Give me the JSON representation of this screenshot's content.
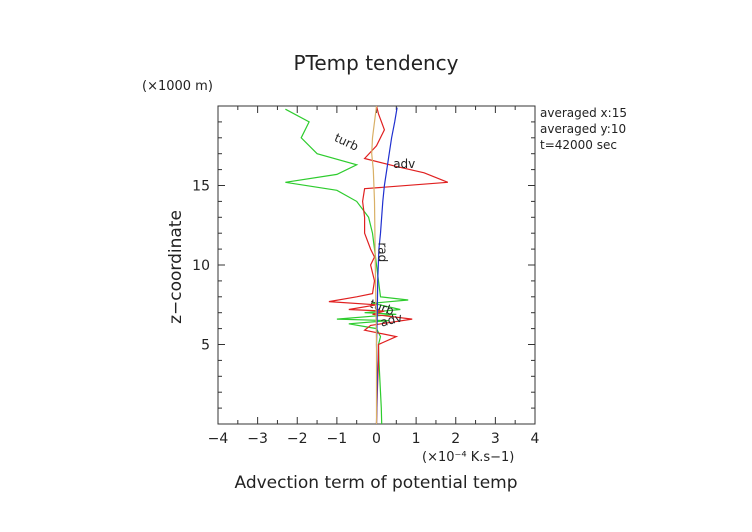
{
  "chart_data": {
    "type": "line",
    "title": "PTemp tendency",
    "xlabel": "Advection term of potential temp",
    "ylabel": "z−coordinate",
    "x_unit": "(×10⁻⁴ K.s−1)",
    "y_unit": "(×1000 m)",
    "xlim": [
      -4,
      4
    ],
    "ylim": [
      0,
      20
    ],
    "x_ticks": [
      -4,
      -3,
      -2,
      -1,
      0,
      1,
      2,
      3,
      4
    ],
    "y_ticks": [
      5,
      10,
      15
    ],
    "grid": false,
    "legend": "none",
    "annotations": [
      "averaged  x:15",
      "averaged  y:10",
      "t=42000 sec"
    ],
    "series": [
      {
        "name": "turb",
        "color": "#2ecc2e",
        "points": [
          [
            0.13,
            0.0
          ],
          [
            0.12,
            1.0
          ],
          [
            0.1,
            2.0
          ],
          [
            0.08,
            3.0
          ],
          [
            0.06,
            4.0
          ],
          [
            0.05,
            5.0
          ],
          [
            0.1,
            5.5
          ],
          [
            0.0,
            6.0
          ],
          [
            -0.7,
            6.3
          ],
          [
            0.3,
            6.5
          ],
          [
            -1.0,
            6.6
          ],
          [
            0.5,
            6.9
          ],
          [
            -0.3,
            7.0
          ],
          [
            0.6,
            7.2
          ],
          [
            -0.1,
            7.6
          ],
          [
            0.8,
            7.8
          ],
          [
            0.1,
            8.0
          ],
          [
            0.05,
            9.0
          ],
          [
            0.0,
            10.0
          ],
          [
            -0.05,
            11.0
          ],
          [
            -0.1,
            12.0
          ],
          [
            -0.2,
            13.0
          ],
          [
            -0.5,
            14.0
          ],
          [
            -1.0,
            14.7
          ],
          [
            -2.3,
            15.2
          ],
          [
            -1.0,
            15.7
          ],
          [
            -0.5,
            16.3
          ],
          [
            -1.5,
            17.0
          ],
          [
            -1.9,
            18.0
          ],
          [
            -1.7,
            19.0
          ],
          [
            -2.3,
            19.8
          ]
        ],
        "labels": [
          {
            "text": "turb",
            "x": -0.8,
            "y": 17.5
          },
          {
            "text": "turb",
            "x": 0.1,
            "y": 7.1
          }
        ]
      },
      {
        "name": "adv",
        "color": "#e02020",
        "points": [
          [
            0.0,
            0.0
          ],
          [
            0.02,
            2.0
          ],
          [
            0.05,
            4.0
          ],
          [
            0.05,
            5.0
          ],
          [
            0.5,
            5.5
          ],
          [
            -0.3,
            5.9
          ],
          [
            -0.15,
            6.2
          ],
          [
            0.9,
            6.6
          ],
          [
            -0.1,
            6.9
          ],
          [
            0.2,
            7.1
          ],
          [
            -0.7,
            7.2
          ],
          [
            0.0,
            7.5
          ],
          [
            -1.2,
            7.7
          ],
          [
            -0.5,
            8.0
          ],
          [
            -0.1,
            8.2
          ],
          [
            -0.05,
            9.0
          ],
          [
            -0.15,
            10.0
          ],
          [
            -0.05,
            10.5
          ],
          [
            -0.15,
            11.0
          ],
          [
            -0.3,
            12.0
          ],
          [
            -0.3,
            13.0
          ],
          [
            -0.35,
            14.0
          ],
          [
            -0.3,
            14.8
          ],
          [
            1.8,
            15.2
          ],
          [
            1.2,
            15.8
          ],
          [
            0.5,
            16.2
          ],
          [
            -0.3,
            16.7
          ],
          [
            0.0,
            17.5
          ],
          [
            0.2,
            18.5
          ],
          [
            0.05,
            19.5
          ],
          [
            0.0,
            20.0
          ]
        ],
        "labels": [
          {
            "text": "adv",
            "x": 0.7,
            "y": 16.1
          },
          {
            "text": "adv",
            "x": 0.4,
            "y": 6.3
          }
        ]
      },
      {
        "name": "rad",
        "color": "#2030d0",
        "points": [
          [
            0.0,
            0.0
          ],
          [
            0.02,
            3.0
          ],
          [
            0.0,
            5.0
          ],
          [
            0.02,
            7.0
          ],
          [
            0.03,
            9.0
          ],
          [
            0.06,
            11.0
          ],
          [
            0.1,
            12.0
          ],
          [
            0.16,
            14.0
          ],
          [
            0.2,
            15.0
          ],
          [
            0.26,
            16.0
          ],
          [
            0.32,
            17.0
          ],
          [
            0.38,
            18.0
          ],
          [
            0.46,
            19.0
          ],
          [
            0.52,
            19.9
          ]
        ],
        "labels": [
          {
            "text": "rad",
            "x": 0.05,
            "y": 10.8
          }
        ]
      },
      {
        "name": "",
        "color": "#d9b066",
        "points": [
          [
            0.0,
            0.0
          ],
          [
            0.0,
            5.0
          ],
          [
            -0.03,
            10.0
          ],
          [
            -0.05,
            14.0
          ],
          [
            -0.08,
            16.0
          ],
          [
            -0.12,
            17.0
          ],
          [
            -0.1,
            18.0
          ],
          [
            -0.05,
            19.0
          ],
          [
            0.0,
            20.0
          ]
        ]
      }
    ]
  }
}
